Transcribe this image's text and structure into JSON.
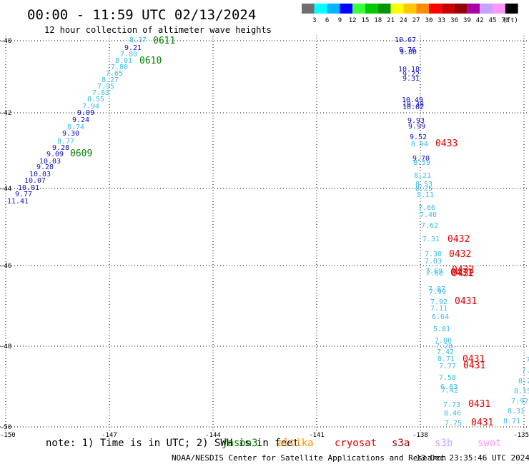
{
  "header": {
    "title": "00:00 - 11:59 UTC 02/13/2024",
    "subtitle": "12 hour collection of altimeter wave heights"
  },
  "legend": {
    "unit": "(ft)",
    "items": [
      {
        "label": "3",
        "color": "#6e6e6e"
      },
      {
        "label": "6",
        "color": "#00ffff"
      },
      {
        "label": "9",
        "color": "#00b4ff"
      },
      {
        "label": "12",
        "color": "#0000ff"
      },
      {
        "label": "15",
        "color": "#3cff3c"
      },
      {
        "label": "18",
        "color": "#00c800"
      },
      {
        "label": "21",
        "color": "#009600"
      },
      {
        "label": "24",
        "color": "#ffff00"
      },
      {
        "label": "27",
        "color": "#ffc800"
      },
      {
        "label": "30",
        "color": "#ff8c00"
      },
      {
        "label": "33",
        "color": "#ff0000"
      },
      {
        "label": "36",
        "color": "#c80000"
      },
      {
        "label": "39",
        "color": "#960000"
      },
      {
        "label": "42",
        "color": "#aa00aa"
      },
      {
        "label": "45",
        "color": "#c8a0ff"
      },
      {
        "label": "70",
        "color": "#ff96ff"
      },
      {
        "label": "",
        "color": "#000000"
      }
    ]
  },
  "axes": {
    "x_ticks": [
      "-150",
      "-147",
      "-144",
      "-141",
      "-138",
      "-135"
    ],
    "y_ticks": [
      "-40",
      "-42",
      "-44",
      "-46",
      "-48",
      "-50"
    ]
  },
  "passes": [
    {
      "time": "0611",
      "color": "#008000"
    },
    {
      "time": "0610",
      "color": "#008000"
    },
    {
      "time": "0609",
      "color": "#008000"
    },
    {
      "time": "0433",
      "color": "#e00000"
    },
    {
      "time": "0432",
      "color": "#e00000"
    },
    {
      "time": "0432",
      "color": "#e00000"
    },
    {
      "time": "0432",
      "color": "#e00000"
    },
    {
      "time": "0432",
      "color": "#e00000"
    },
    {
      "time": "0431",
      "color": "#e00000"
    },
    {
      "time": "0431",
      "color": "#e00000"
    },
    {
      "time": "0431",
      "color": "#e00000"
    },
    {
      "time": "0431",
      "color": "#e00000"
    },
    {
      "time": "0431",
      "color": "#e00000"
    }
  ],
  "track_west": [
    {
      "v": "8.37",
      "c": "#33bbee"
    },
    {
      "v": "9.21",
      "c": "#1010cc"
    },
    {
      "v": "7.80",
      "c": "#33bbee"
    },
    {
      "v": "8.01",
      "c": "#33bbee"
    },
    {
      "v": "7.80",
      "c": "#33bbee"
    },
    {
      "v": "7.65",
      "c": "#33bbee"
    },
    {
      "v": "8.27",
      "c": "#33bbee"
    },
    {
      "v": "7.95",
      "c": "#33bbee"
    },
    {
      "v": "7.83",
      "c": "#33bbee"
    },
    {
      "v": "8.55",
      "c": "#33bbee"
    },
    {
      "v": "7.94",
      "c": "#33bbee"
    },
    {
      "v": "9.09",
      "c": "#1010cc"
    },
    {
      "v": "9.24",
      "c": "#1010cc"
    },
    {
      "v": "8.74",
      "c": "#33bbee"
    },
    {
      "v": "9.30",
      "c": "#1010cc"
    },
    {
      "v": "8.77",
      "c": "#33bbee"
    },
    {
      "v": "9.28",
      "c": "#1010cc"
    },
    {
      "v": "9.09",
      "c": "#1010cc"
    },
    {
      "v": "10.03",
      "c": "#1010cc"
    },
    {
      "v": "9.28",
      "c": "#1010cc"
    },
    {
      "v": "10.03",
      "c": "#1010cc"
    },
    {
      "v": "10.07",
      "c": "#1010cc"
    },
    {
      "v": "10.01",
      "c": "#1010cc"
    },
    {
      "v": "9.77",
      "c": "#1010cc"
    },
    {
      "v": "11.41",
      "c": "#1010cc"
    }
  ],
  "track_east": [
    {
      "v": "10.67",
      "c": "#1010cc"
    },
    {
      "v": "9.76",
      "c": "#1010cc"
    },
    {
      "v": "9.80",
      "c": "#1010cc"
    },
    {
      "v": "10.18",
      "c": "#1010cc"
    },
    {
      "v": "9.22",
      "c": "#1010cc"
    },
    {
      "v": "9.31",
      "c": "#1010cc"
    },
    {
      "v": "10.49",
      "c": "#1010cc"
    },
    {
      "v": "10.38",
      "c": "#1010cc"
    },
    {
      "v": "10.02",
      "c": "#1010cc"
    },
    {
      "v": "9.93",
      "c": "#1010cc"
    },
    {
      "v": "9.99",
      "c": "#1010cc"
    },
    {
      "v": "9.52",
      "c": "#1010cc"
    },
    {
      "v": "8.94",
      "c": "#33bbee"
    },
    {
      "v": "9.70",
      "c": "#1010cc"
    },
    {
      "v": "8.59",
      "c": "#33bbee"
    },
    {
      "v": "8.21",
      "c": "#33bbee"
    },
    {
      "v": "8.53",
      "c": "#33bbee"
    },
    {
      "v": "8.25",
      "c": "#33bbee"
    },
    {
      "v": "8.11",
      "c": "#33bbee"
    },
    {
      "v": "7.66",
      "c": "#33bbee"
    },
    {
      "v": "7.46",
      "c": "#33bbee"
    },
    {
      "v": "7.62",
      "c": "#33bbee"
    },
    {
      "v": "7.31",
      "c": "#33bbee"
    },
    {
      "v": "7.38",
      "c": "#33bbee"
    },
    {
      "v": "7.03",
      "c": "#33bbee"
    },
    {
      "v": "7.69",
      "c": "#33bbee"
    },
    {
      "v": "7.60",
      "c": "#33bbee"
    },
    {
      "v": "7.87",
      "c": "#33bbee"
    },
    {
      "v": "7.99",
      "c": "#33bbee"
    },
    {
      "v": "7.92",
      "c": "#33bbee"
    },
    {
      "v": "7.11",
      "c": "#33bbee"
    },
    {
      "v": "6.64",
      "c": "#33bbee"
    },
    {
      "v": "5.81",
      "c": "#33bbee"
    },
    {
      "v": "7.06",
      "c": "#33bbee"
    },
    {
      "v": "7.28",
      "c": "#33bbee"
    },
    {
      "v": "7.42",
      "c": "#33bbee"
    },
    {
      "v": "8.71",
      "c": "#33bbee"
    },
    {
      "v": "7.77",
      "c": "#33bbee"
    },
    {
      "v": "7.58",
      "c": "#33bbee"
    },
    {
      "v": "6.83",
      "c": "#33bbee"
    },
    {
      "v": "7.42",
      "c": "#33bbee"
    },
    {
      "v": "7.73",
      "c": "#33bbee"
    },
    {
      "v": "8.46",
      "c": "#33bbee"
    },
    {
      "v": "7.75",
      "c": "#33bbee"
    }
  ],
  "track_far_east": [
    {
      "v": "7",
      "c": "#33bbee"
    },
    {
      "v": "7.",
      "c": "#33bbee"
    },
    {
      "v": "8.2",
      "c": "#33bbee"
    },
    {
      "v": "8.15",
      "c": "#33bbee"
    },
    {
      "v": "7.92",
      "c": "#33bbee"
    },
    {
      "v": "8.31",
      "c": "#33bbee"
    },
    {
      "v": "8.71",
      "c": "#33bbee"
    }
  ],
  "note": {
    "prefix": "note:  1) Time is in UTC; 2) SWH is in feet",
    "satellites": [
      {
        "name": "jason3",
        "color": "#008000"
      },
      {
        "name": "altika",
        "color": "#ff8c00"
      },
      {
        "name": "cryosat",
        "color": "#e00000"
      },
      {
        "name": "s3a",
        "color": "#a00000"
      },
      {
        "name": "s3b",
        "color": "#c8a0ff"
      },
      {
        "name": "swot",
        "color": "#ff96ff"
      }
    ]
  },
  "footer": {
    "credit": "NOAA/NESDIS Center for Satellite Applications and Research",
    "timestamp": "13 Dec 23:35:46 UTC 2024"
  }
}
